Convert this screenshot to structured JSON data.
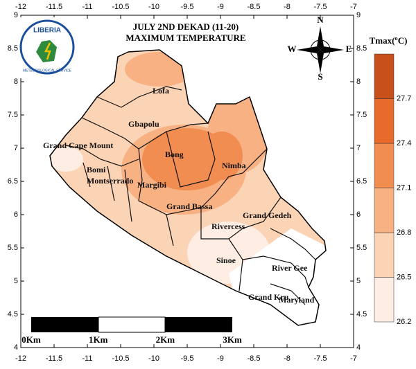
{
  "title": [
    "JULY 2ND DEKAD (11-20)",
    "MAXIMUM TEMPERATURE"
  ],
  "logo": {
    "name": "LIBERIA",
    "subtitle": "METEOROLOGICAL SERVICE"
  },
  "compass": [
    "N",
    "E",
    "S",
    "W"
  ],
  "map": {
    "xlim": [
      -12,
      -7
    ],
    "ylim": [
      4,
      9
    ],
    "xticks": [
      -12,
      -11.5,
      -11,
      -10.5,
      -10,
      -9.5,
      -9,
      -8.5,
      -8,
      -7.5,
      -7
    ],
    "yticks": [
      4,
      4.5,
      5,
      5.5,
      6,
      6.5,
      7,
      7.5,
      8,
      8.5,
      9
    ]
  },
  "regions": [
    "Lofa",
    "Gbapolu",
    "Grand Cape Mount",
    "Bong",
    "Nimba",
    "Bomi",
    "Montserrado",
    "Margibi",
    "Grand Bassa",
    "Rivercess",
    "Grand Gedeh",
    "Sinoe",
    "River Gee",
    "Grand Kru",
    "Maryland"
  ],
  "legend": {
    "title": "Tmax(ºC)",
    "ticks": [
      26.2,
      26.5,
      26.8,
      27.1,
      27.4,
      27.7
    ],
    "colors": [
      "#fdede3",
      "#fbd3b5",
      "#f8b183",
      "#f28d52",
      "#e96b2c",
      "#c8501a"
    ]
  },
  "scale_bar": [
    "0Km",
    "1Km",
    "2Km",
    "3Km"
  ]
}
